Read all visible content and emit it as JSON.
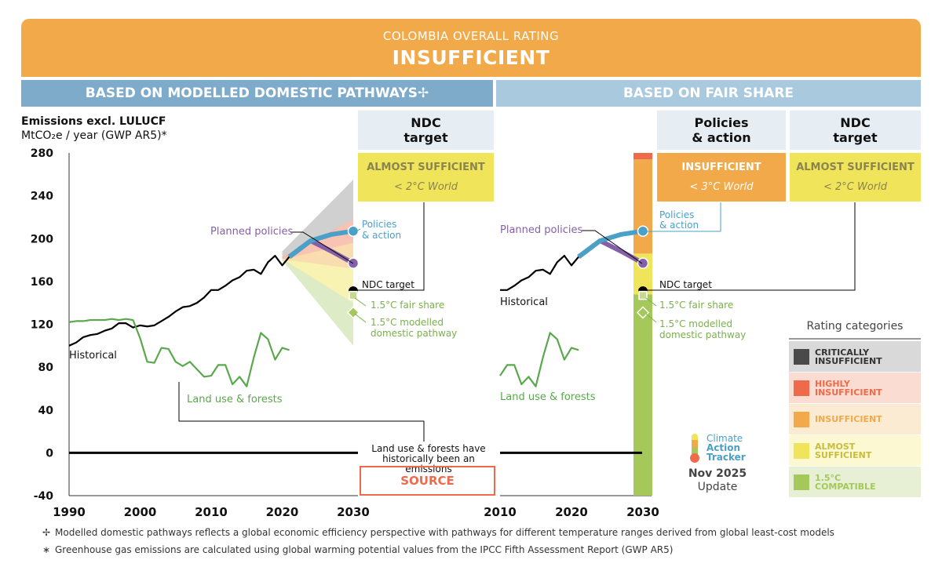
{
  "header": {
    "subtitle": "COLOMBIA OVERALL RATING",
    "title": "INSUFFICIENT"
  },
  "sections": {
    "left": "BASED ON MODELLED DOMESTIC PATHWAYS✢",
    "right": "BASED ON FAIR SHARE"
  },
  "colheads": {
    "ndc_left": "NDC\ntarget",
    "policies": "Policies\n& action",
    "ndc_right": "NDC\ntarget"
  },
  "ratings": {
    "ndc_left": {
      "label": "ALMOST SUFFICIENT",
      "world": "< 2°C World",
      "color": "#f0e55a"
    },
    "policies": {
      "label": "INSUFFICIENT",
      "world": "< 3°C World",
      "color": "#f2a94a"
    },
    "ndc_right": {
      "label": "ALMOST SUFFICIENT",
      "world": "< 2°C World",
      "color": "#f0e55a"
    }
  },
  "axis": {
    "title": "Emissions excl. LULUCF",
    "unit": "MtCO₂e / year (GWP AR5)*"
  },
  "labels": {
    "planned_left": "Planned policies",
    "policies_left": "Policies\n& action",
    "ndc_target_left": "NDC target",
    "fair_left": "1.5°C fair share",
    "mdp_left": "1.5°C modelled\ndomestic pathway",
    "historical_left": "Historical",
    "landuse_left": "Land use & forests",
    "source_note": "Land use & forests have\nhistorically been an emissions",
    "source": "SOURCE",
    "planned_right": "Planned policies",
    "policies_right": "Policies\n& action",
    "historical_right": "Historical",
    "ndc_target_right": "NDC target",
    "fair_right": "1.5°C fair share",
    "mdp_right": "1.5°C modelled\ndomestic pathway",
    "landuse_right": "Land use & forests"
  },
  "logo": {
    "line1": "Climate",
    "line2": "Action",
    "line3": "Tracker",
    "date": "Nov 2025",
    "update": "Update"
  },
  "legend": {
    "title": "Rating categories",
    "items": [
      {
        "label": "CRITICALLY\nINSUFFICIENT",
        "color": "#4a4a4a",
        "bg": "#d9d9d9",
        "text": "#333333"
      },
      {
        "label": "HIGHLY\nINSUFFICIENT",
        "color": "#ee6a4a",
        "bg": "#fbdcd2",
        "text": "#ee6a4a"
      },
      {
        "label": "INSUFFICIENT",
        "color": "#f2a94a",
        "bg": "#fcebd3",
        "text": "#f2a94a"
      },
      {
        "label": "ALMOST\nSUFFICIENT",
        "color": "#f0e55a",
        "bg": "#fcf8d2",
        "text": "#c8bd3a"
      },
      {
        "label": "1.5°C\nCOMPATIBLE",
        "color": "#a4c85a",
        "bg": "#e7f0d5",
        "text": "#a4c85a"
      }
    ]
  },
  "footnotes": [
    {
      "symbol": "✢",
      "text": "Modelled domestic pathways reflects a global economic efficiency perspective with pathways for different temperature ranges derived from global least-cost models"
    },
    {
      "symbol": "∗",
      "text": "Greenhouse gas emissions are calculated using global warming potential values from the IPCC Fifth Assessment Report (GWP AR5)"
    }
  ],
  "colors": {
    "banner": "#f2a94a",
    "left_bar": "#7fabcb",
    "right_bar": "#a9c9de",
    "historical": "#000000",
    "landuse": "#5aa84c",
    "planned": "#8560a8",
    "policies": "#4ba0c8"
  },
  "chart_data": [
    {
      "type": "line",
      "panel": "modelled domestic pathways",
      "ylim": [
        -40,
        280
      ],
      "yticks": [
        280,
        240,
        200,
        160,
        120,
        80,
        40,
        0,
        -40
      ],
      "xlim": [
        1990,
        2030
      ],
      "xticks": [
        1990,
        2000,
        2010,
        2020,
        2030
      ],
      "series": [
        {
          "name": "Historical",
          "x": [
            1990,
            1991,
            1992,
            1993,
            1994,
            1995,
            1996,
            1997,
            1998,
            1999,
            2000,
            2001,
            2002,
            2003,
            2004,
            2005,
            2006,
            2007,
            2008,
            2009,
            2010,
            2011,
            2012,
            2013,
            2014,
            2015,
            2016,
            2017,
            2018,
            2019,
            2020,
            2021
          ],
          "values": [
            100,
            103,
            108,
            110,
            111,
            114,
            116,
            121,
            121,
            117,
            119,
            118,
            119,
            123,
            127,
            132,
            136,
            137,
            140,
            145,
            152,
            152,
            156,
            161,
            164,
            170,
            171,
            167,
            178,
            184,
            175,
            183
          ]
        },
        {
          "name": "Land use & forests",
          "x": [
            1990,
            1991,
            1992,
            1993,
            1994,
            1995,
            1996,
            1997,
            1998,
            1999,
            2000,
            2001,
            2002,
            2003,
            2004,
            2005,
            2006,
            2007,
            2008,
            2009,
            2010,
            2011,
            2012,
            2013,
            2014,
            2015,
            2016,
            2017,
            2018,
            2019,
            2020,
            2021
          ],
          "values": [
            122,
            123,
            123,
            124,
            124,
            124,
            125,
            124,
            125,
            124,
            107,
            85,
            84,
            98,
            97,
            85,
            81,
            85,
            78,
            71,
            72,
            82,
            82,
            64,
            71,
            62,
            89,
            112,
            106,
            87,
            98,
            96
          ]
        },
        {
          "name": "Planned policies",
          "x": [
            2021,
            2024,
            2027,
            2030
          ],
          "values": [
            183,
            198,
            188,
            177
          ]
        },
        {
          "name": "Policies & action",
          "x": [
            2021,
            2024,
            2027,
            2030
          ],
          "values": [
            183,
            198,
            204,
            207
          ]
        }
      ],
      "bands": [
        {
          "range": "critically insufficient",
          "x": [
            2020,
            2030
          ],
          "low": [
            180,
            218
          ],
          "high": [
            188,
            255
          ]
        },
        {
          "range": "highly insufficient",
          "x": [
            2020,
            2030
          ],
          "low": [
            180,
            196
          ],
          "high": [
            183,
            218
          ]
        },
        {
          "range": "insufficient",
          "x": [
            2020,
            2030
          ],
          "low": [
            180,
            172
          ],
          "high": [
            181,
            196
          ]
        },
        {
          "range": "almost sufficient",
          "x": [
            2020,
            2030
          ],
          "low": [
            180,
            140
          ],
          "high": [
            181,
            172
          ]
        },
        {
          "range": "1.5°C compatible",
          "x": [
            2020,
            2030
          ],
          "low": [
            180,
            100
          ],
          "high": [
            181,
            140
          ]
        }
      ],
      "markers": [
        {
          "name": "NDC target",
          "x": 2030,
          "value": 151
        },
        {
          "name": "1.5°C fair share",
          "x": 2030,
          "value": 147
        },
        {
          "name": "1.5°C modelled domestic pathway",
          "x": 2030,
          "value": 131
        },
        {
          "name": "Policies & action",
          "x": 2030,
          "value": 207
        },
        {
          "name": "Planned policies",
          "x": 2030,
          "value": 177
        }
      ],
      "zero_line": 0
    },
    {
      "type": "line",
      "panel": "fair share",
      "ylim": [
        -40,
        280
      ],
      "xlim": [
        2010,
        2030
      ],
      "xticks": [
        2010,
        2020,
        2030
      ],
      "series": [
        {
          "name": "Historical",
          "x": [
            2010,
            2011,
            2012,
            2013,
            2014,
            2015,
            2016,
            2017,
            2018,
            2019,
            2020,
            2021
          ],
          "values": [
            152,
            152,
            156,
            161,
            164,
            170,
            171,
            167,
            178,
            184,
            175,
            183
          ]
        },
        {
          "name": "Land use & forests",
          "x": [
            2010,
            2011,
            2012,
            2013,
            2014,
            2015,
            2016,
            2017,
            2018,
            2019,
            2020,
            2021
          ],
          "values": [
            72,
            82,
            82,
            64,
            71,
            62,
            89,
            112,
            106,
            87,
            98,
            96
          ]
        },
        {
          "name": "Planned policies",
          "x": [
            2021,
            2024,
            2027,
            2030
          ],
          "values": [
            183,
            198,
            188,
            177
          ]
        },
        {
          "name": "Policies & action",
          "x": [
            2021,
            2024,
            2027,
            2030
          ],
          "values": [
            183,
            198,
            204,
            207
          ]
        }
      ],
      "fair_share_bar": [
        {
          "range": "1.5°C compatible",
          "low": -40,
          "high": 148
        },
        {
          "range": "almost sufficient",
          "low": 148,
          "high": 186
        },
        {
          "range": "insufficient",
          "low": 186,
          "high": 274
        },
        {
          "range": "highly insufficient",
          "low": 274,
          "high": 280
        }
      ],
      "markers": [
        {
          "name": "NDC target",
          "x": 2030,
          "value": 151
        },
        {
          "name": "1.5°C fair share",
          "x": 2030,
          "value": 147
        },
        {
          "name": "1.5°C modelled domestic pathway",
          "x": 2030,
          "value": 131
        },
        {
          "name": "Policies & action",
          "x": 2030,
          "value": 207
        },
        {
          "name": "Planned policies",
          "x": 2030,
          "value": 177
        }
      ],
      "zero_line": 0
    }
  ]
}
